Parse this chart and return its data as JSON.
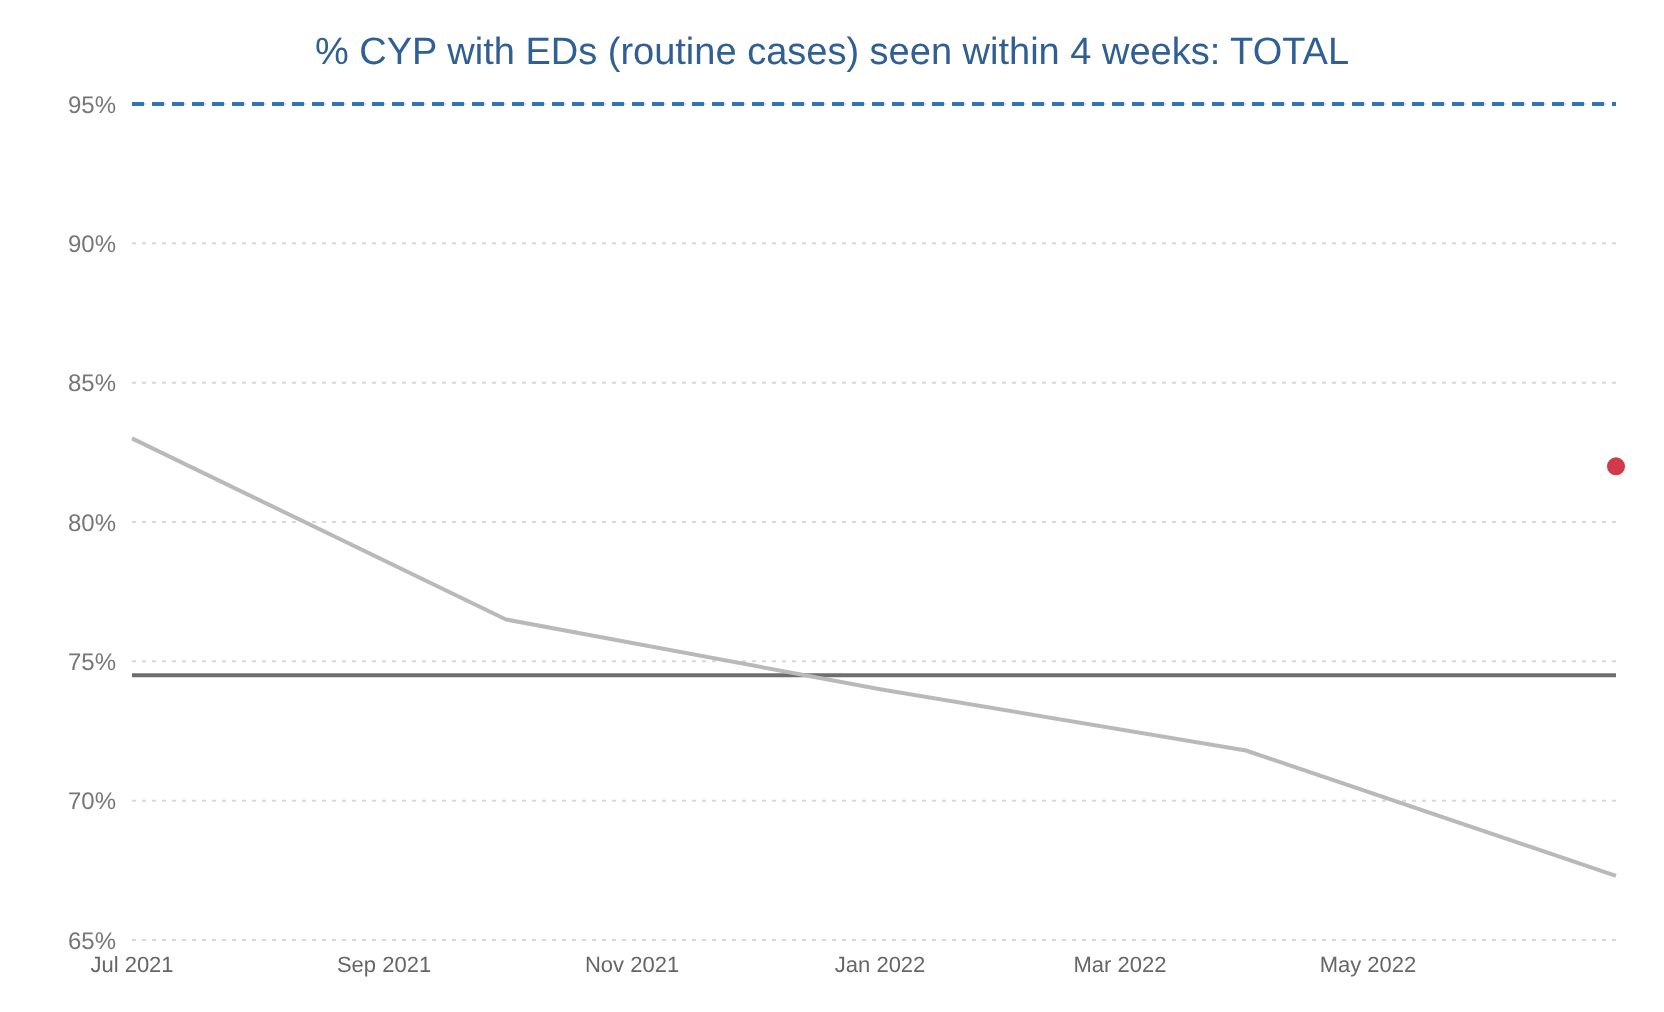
{
  "chart_data": {
    "type": "line",
    "title": "% CYP with EDs (routine cases) seen within 4 weeks: TOTAL",
    "x": [
      "2021-07",
      "2021-10",
      "2022-01",
      "2022-04",
      "2022-07"
    ],
    "series": [
      {
        "color": "#b9b9b9",
        "values": [
          83.0,
          76.5,
          74.0,
          71.8,
          67.3
        ],
        "marker": "none",
        "line_style": "solid"
      },
      {
        "type": "scatter",
        "color": "#d13a4a",
        "x": [
          "2022-07"
        ],
        "values": [
          82.0
        ],
        "marker": "circle"
      }
    ],
    "ref_lines": [
      {
        "axis": "y",
        "value": 95,
        "color": "#2e75b6",
        "line_style": "dashed"
      },
      {
        "axis": "y",
        "value": 74.5,
        "color": "#6e6e6e",
        "line_style": "solid"
      }
    ],
    "xlim": [
      "2021-07",
      "2022-07"
    ],
    "xticks": [
      {
        "value": "2021-07",
        "label": "Jul 2021"
      },
      {
        "value": "2021-09",
        "label": "Sep 2021"
      },
      {
        "value": "2021-11",
        "label": "Nov 2021"
      },
      {
        "value": "2022-01",
        "label": "Jan 2022"
      },
      {
        "value": "2022-03",
        "label": "Mar 2022"
      },
      {
        "value": "2022-05",
        "label": "May 2022"
      }
    ],
    "ylim": [
      65,
      95
    ],
    "yticks": [
      {
        "value": 65,
        "label": "65%"
      },
      {
        "value": 70,
        "label": "70%"
      },
      {
        "value": 75,
        "label": "75%"
      },
      {
        "value": 80,
        "label": "80%"
      },
      {
        "value": 85,
        "label": "85%"
      },
      {
        "value": 90,
        "label": "90%"
      },
      {
        "value": 95,
        "label": "95%"
      }
    ],
    "grid": "y",
    "legend": false
  }
}
